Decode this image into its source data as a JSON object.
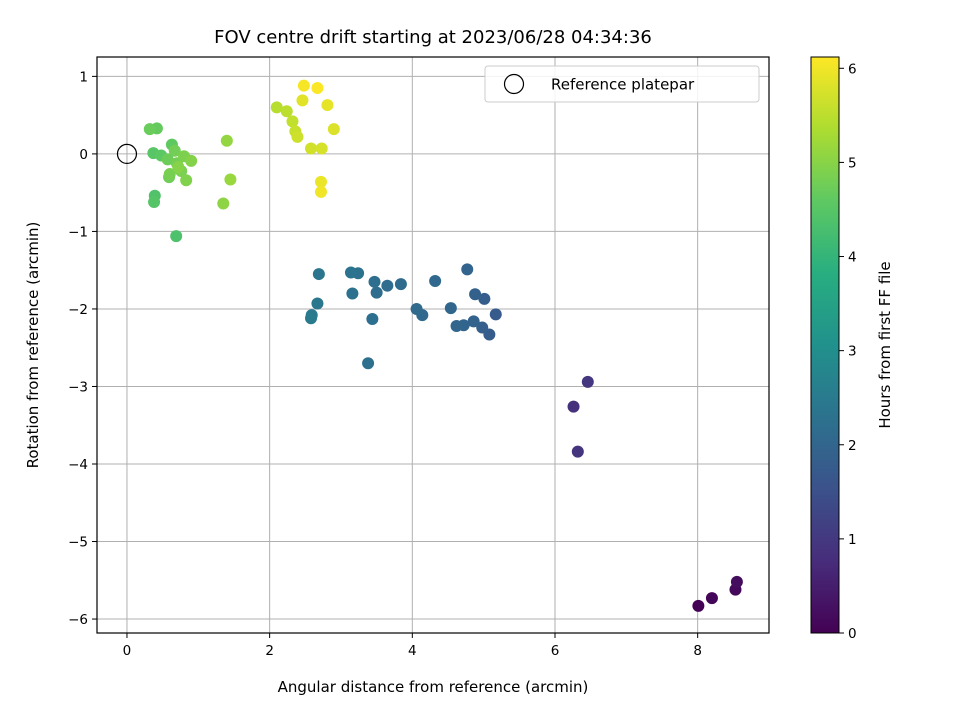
{
  "chart_data": {
    "type": "scatter",
    "title": "FOV centre drift starting at 2023/06/28 04:34:36",
    "xlabel": "Angular distance from reference (arcmin)",
    "ylabel": "Rotation from reference (arcmin)",
    "xlim": [
      -0.42,
      9.0
    ],
    "ylim": [
      -6.18,
      1.25
    ],
    "xticks": [
      0,
      2,
      4,
      6,
      8
    ],
    "yticks": [
      -6,
      -5,
      -4,
      -3,
      -2,
      -1,
      0,
      1
    ],
    "grid": true,
    "legend": {
      "placement": "top-right",
      "entries": [
        "Reference platepar"
      ]
    },
    "reference": {
      "x": 0,
      "y": 0
    },
    "colorbar": {
      "label": "Hours from first FF file",
      "range": [
        0,
        6.12
      ],
      "ticks": [
        0,
        1,
        2,
        3,
        4,
        5,
        6
      ],
      "colormap": "viridis"
    },
    "points": [
      {
        "x": 8.01,
        "y": -5.83,
        "h": 0.02
      },
      {
        "x": 8.2,
        "y": -5.73,
        "h": 0.08
      },
      {
        "x": 8.53,
        "y": -5.62,
        "h": 0.14
      },
      {
        "x": 8.55,
        "y": -5.52,
        "h": 0.2
      },
      {
        "x": 6.26,
        "y": -3.26,
        "h": 0.85
      },
      {
        "x": 6.32,
        "y": -3.84,
        "h": 0.9
      },
      {
        "x": 6.46,
        "y": -2.94,
        "h": 0.95
      },
      {
        "x": 5.17,
        "y": -2.07,
        "h": 1.75
      },
      {
        "x": 5.08,
        "y": -2.33,
        "h": 1.78
      },
      {
        "x": 5.01,
        "y": -1.87,
        "h": 1.82
      },
      {
        "x": 4.98,
        "y": -2.24,
        "h": 1.85
      },
      {
        "x": 4.88,
        "y": -1.81,
        "h": 1.88
      },
      {
        "x": 4.86,
        "y": -2.16,
        "h": 1.92
      },
      {
        "x": 4.77,
        "y": -1.49,
        "h": 1.95
      },
      {
        "x": 4.72,
        "y": -2.21,
        "h": 1.98
      },
      {
        "x": 4.62,
        "y": -2.22,
        "h": 2.0
      },
      {
        "x": 4.54,
        "y": -1.99,
        "h": 2.03
      },
      {
        "x": 4.32,
        "y": -1.64,
        "h": 2.05
      },
      {
        "x": 4.14,
        "y": -2.08,
        "h": 2.08
      },
      {
        "x": 4.06,
        "y": -2.0,
        "h": 2.1
      },
      {
        "x": 3.84,
        "y": -1.68,
        "h": 2.13
      },
      {
        "x": 3.65,
        "y": -1.7,
        "h": 2.15
      },
      {
        "x": 3.5,
        "y": -1.79,
        "h": 2.18
      },
      {
        "x": 3.47,
        "y": -1.65,
        "h": 2.2
      },
      {
        "x": 3.44,
        "y": -2.13,
        "h": 2.23
      },
      {
        "x": 3.38,
        "y": -2.7,
        "h": 2.25
      },
      {
        "x": 3.24,
        "y": -1.54,
        "h": 2.28
      },
      {
        "x": 3.16,
        "y": -1.8,
        "h": 2.3
      },
      {
        "x": 3.14,
        "y": -1.53,
        "h": 2.33
      },
      {
        "x": 2.69,
        "y": -1.55,
        "h": 2.38
      },
      {
        "x": 2.67,
        "y": -1.93,
        "h": 2.42
      },
      {
        "x": 2.59,
        "y": -2.08,
        "h": 2.46
      },
      {
        "x": 2.58,
        "y": -2.12,
        "h": 2.5
      },
      {
        "x": 0.69,
        "y": -1.06,
        "h": 4.35
      },
      {
        "x": 0.39,
        "y": -0.54,
        "h": 4.4
      },
      {
        "x": 0.38,
        "y": -0.62,
        "h": 4.45
      },
      {
        "x": 0.37,
        "y": 0.01,
        "h": 4.5
      },
      {
        "x": 0.48,
        "y": -0.02,
        "h": 4.55
      },
      {
        "x": 0.63,
        "y": 0.12,
        "h": 4.6
      },
      {
        "x": 0.42,
        "y": 0.33,
        "h": 4.65
      },
      {
        "x": 0.32,
        "y": 0.32,
        "h": 4.7
      },
      {
        "x": 0.57,
        "y": -0.07,
        "h": 4.72
      },
      {
        "x": 0.59,
        "y": -0.3,
        "h": 4.75
      },
      {
        "x": 0.67,
        "y": 0.04,
        "h": 4.78
      },
      {
        "x": 0.7,
        "y": -0.12,
        "h": 4.8
      },
      {
        "x": 0.6,
        "y": -0.26,
        "h": 4.83
      },
      {
        "x": 0.76,
        "y": -0.22,
        "h": 4.86
      },
      {
        "x": 0.8,
        "y": -0.03,
        "h": 4.89
      },
      {
        "x": 0.83,
        "y": -0.34,
        "h": 4.92
      },
      {
        "x": 0.9,
        "y": -0.09,
        "h": 4.95
      },
      {
        "x": 0.72,
        "y": -0.17,
        "h": 4.98
      },
      {
        "x": 1.35,
        "y": -0.64,
        "h": 5.05
      },
      {
        "x": 1.4,
        "y": 0.17,
        "h": 5.1
      },
      {
        "x": 1.45,
        "y": -0.33,
        "h": 5.15
      },
      {
        "x": 2.1,
        "y": 0.6,
        "h": 5.45
      },
      {
        "x": 2.24,
        "y": 0.55,
        "h": 5.5
      },
      {
        "x": 2.32,
        "y": 0.42,
        "h": 5.55
      },
      {
        "x": 2.36,
        "y": 0.29,
        "h": 5.6
      },
      {
        "x": 2.39,
        "y": 0.22,
        "h": 5.65
      },
      {
        "x": 2.58,
        "y": 0.07,
        "h": 5.7
      },
      {
        "x": 2.73,
        "y": 0.07,
        "h": 5.75
      },
      {
        "x": 2.9,
        "y": 0.32,
        "h": 5.8
      },
      {
        "x": 2.46,
        "y": 0.69,
        "h": 5.85
      },
      {
        "x": 2.81,
        "y": 0.63,
        "h": 5.9
      },
      {
        "x": 2.72,
        "y": -0.36,
        "h": 5.95
      },
      {
        "x": 2.72,
        "y": -0.49,
        "h": 6.0
      },
      {
        "x": 2.48,
        "y": 0.88,
        "h": 6.05
      },
      {
        "x": 2.67,
        "y": 0.85,
        "h": 6.1
      }
    ]
  }
}
